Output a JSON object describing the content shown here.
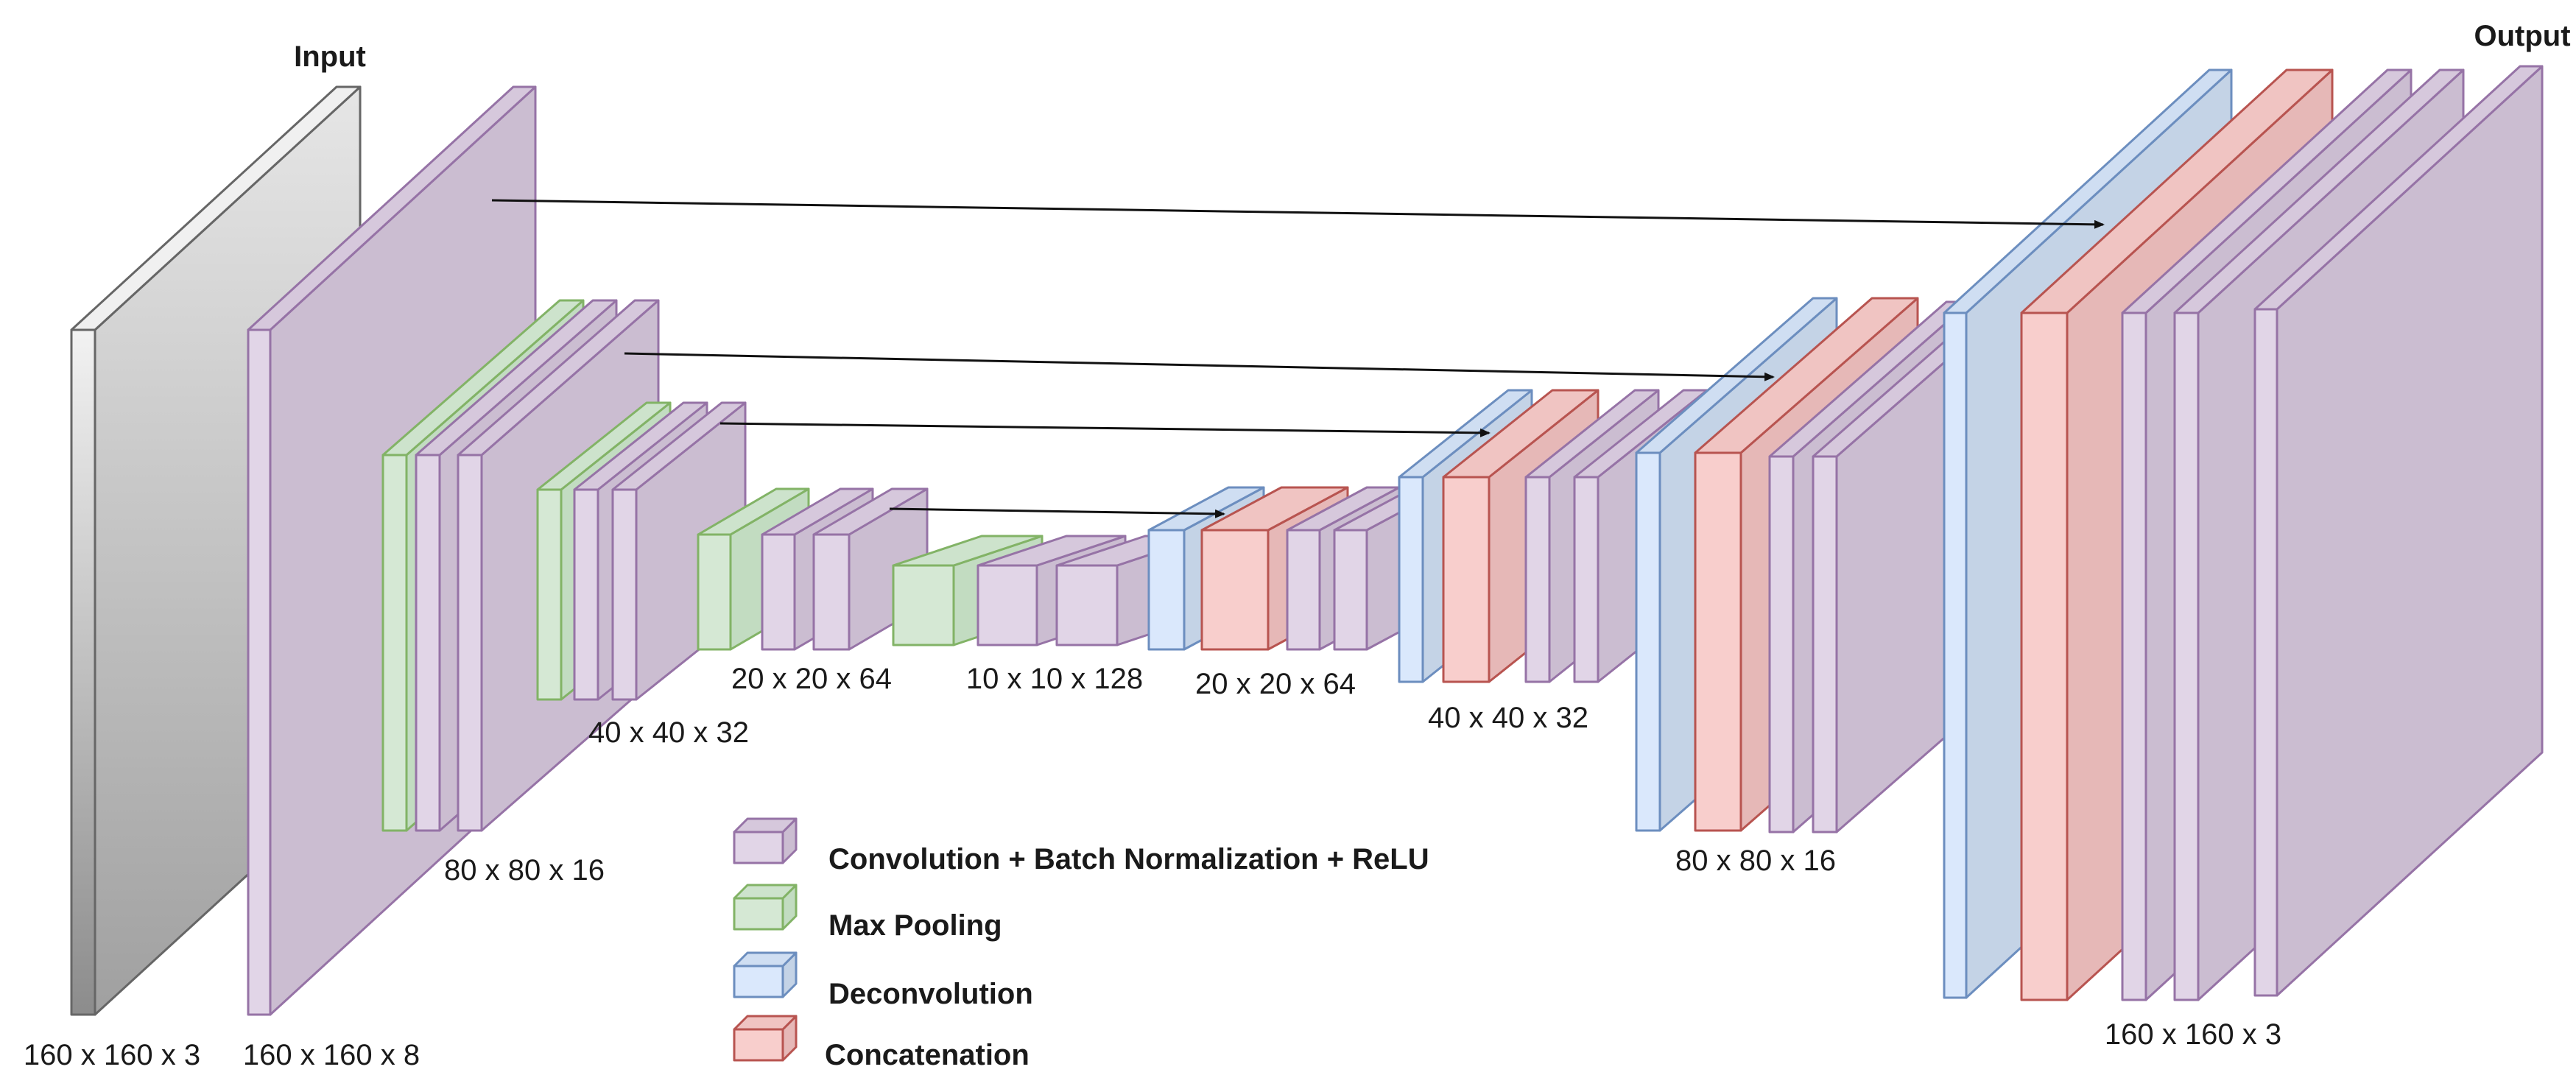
{
  "labels": {
    "input": "Input",
    "output": "Output"
  },
  "dims": {
    "in_160x3": "160 x 160 x 3",
    "enc_160x8": "160 x 160 x 8",
    "enc_80x16": "80 x 80 x 16",
    "enc_40x32": "40 x 40 x 32",
    "enc_20x64": "20 x 20 x 64",
    "bottleneck": "10 x 10 x 128",
    "dec_20x64": "20 x 20 x 64",
    "dec_40x32": "40 x 40 x 32",
    "dec_80x16": "80 x 80 x 16",
    "out_160x3": "160 x 160 x 3"
  },
  "legend": [
    {
      "label": "Convolution + Batch Normalization + ReLU",
      "kind": "conv"
    },
    {
      "label": "Max Pooling",
      "kind": "pool"
    },
    {
      "label": "Deconvolution",
      "kind": "deconv"
    },
    {
      "label": "Concatenation",
      "kind": "concat"
    }
  ],
  "colors": {
    "conv": {
      "front": "#e1d5e7",
      "side": "#cbbdd1",
      "top": "#d6c8dc",
      "stroke": "#9673a6"
    },
    "pool": {
      "front": "#d5e8d4",
      "side": "#c2dcc1",
      "top": "#cde3cc",
      "stroke": "#82b366"
    },
    "deconv": {
      "front": "#dae8fc",
      "side": "#c4d3e6",
      "top": "#cfdef2",
      "stroke": "#6c8ebf"
    },
    "concat": {
      "front": "#f8cecc",
      "side": "#e6b8b7",
      "top": "#f0c4c2",
      "stroke": "#b85450"
    },
    "input": {
      "front": "#e0e0e0",
      "side": "#c8c8c8",
      "top": "#f0f0f0",
      "stroke": "#666666"
    }
  }
}
